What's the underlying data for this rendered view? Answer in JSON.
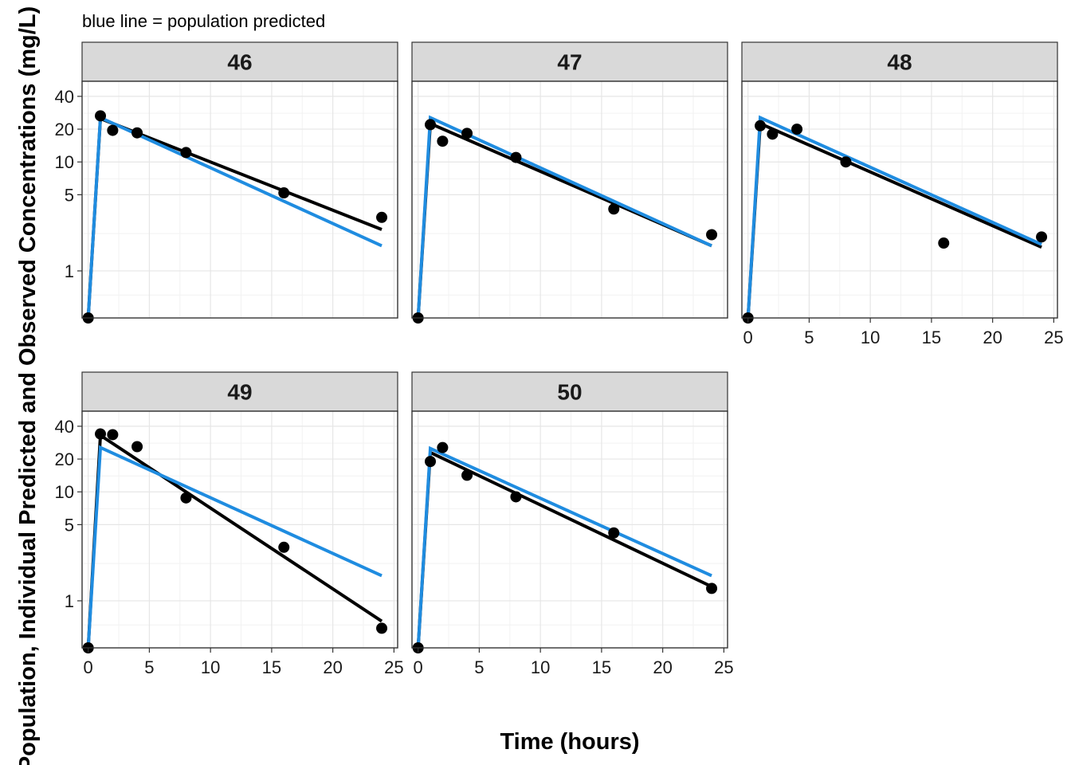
{
  "chart_data": {
    "type": "line",
    "subtitle": "blue line = population predicted",
    "xlabel": "Time (hours)",
    "ylabel": "Population, Individual Predicted and Observed Concentrations (mg/L)",
    "x_scale": "linear",
    "y_scale": "log",
    "xlim": [
      -0.5,
      25.3
    ],
    "ylim": [
      0.37,
      55
    ],
    "x_ticks": [
      0,
      5,
      10,
      15,
      20,
      25
    ],
    "y_ticks": [
      1,
      5,
      10,
      20,
      40
    ],
    "x_tick_labels": [
      "0",
      "5",
      "10",
      "15",
      "20",
      "25"
    ],
    "y_tick_labels": [
      "1",
      "5",
      "10",
      "20",
      "40"
    ],
    "grid": true,
    "colors": {
      "individual": "#000000",
      "population": "#1f8ce0",
      "observed": "#000000",
      "strip_fill": "#d9d9d9"
    },
    "panels": [
      {
        "id": "46",
        "observed": [
          [
            0,
            0.37
          ],
          [
            1,
            26.5
          ],
          [
            2,
            19.5
          ],
          [
            4,
            18.5
          ],
          [
            8,
            12.2
          ],
          [
            16,
            5.2
          ],
          [
            24,
            3.1
          ]
        ],
        "individual_pred": [
          [
            0,
            0.37
          ],
          [
            1,
            25
          ],
          [
            24,
            2.4
          ]
        ],
        "population_pred": [
          [
            0,
            0.37
          ],
          [
            1,
            25.5
          ],
          [
            24,
            1.7
          ]
        ]
      },
      {
        "id": "47",
        "observed": [
          [
            0,
            0.37
          ],
          [
            1,
            22
          ],
          [
            2,
            15.5
          ],
          [
            4,
            18.3
          ],
          [
            8,
            11
          ],
          [
            16,
            3.7
          ],
          [
            24,
            2.15
          ]
        ],
        "individual_pred": [
          [
            0,
            0.37
          ],
          [
            1,
            22.5
          ],
          [
            24,
            1.7
          ]
        ],
        "population_pred": [
          [
            0,
            0.37
          ],
          [
            1,
            25.5
          ],
          [
            24,
            1.7
          ]
        ]
      },
      {
        "id": "48",
        "observed": [
          [
            0,
            0.37
          ],
          [
            1,
            21.5
          ],
          [
            2,
            18
          ],
          [
            4,
            20
          ],
          [
            8,
            10
          ],
          [
            16,
            1.8
          ],
          [
            24,
            2.05
          ]
        ],
        "individual_pred": [
          [
            0,
            0.37
          ],
          [
            1,
            22.5
          ],
          [
            24,
            1.65
          ]
        ],
        "population_pred": [
          [
            0,
            0.37
          ],
          [
            1,
            25.5
          ],
          [
            24,
            1.75
          ]
        ]
      },
      {
        "id": "49",
        "observed": [
          [
            0,
            0.37
          ],
          [
            1,
            34
          ],
          [
            2,
            33.5
          ],
          [
            4,
            26
          ],
          [
            8,
            8.8
          ],
          [
            16,
            3.1
          ],
          [
            24,
            0.56
          ]
        ],
        "individual_pred": [
          [
            0,
            0.37
          ],
          [
            1,
            33
          ],
          [
            24,
            0.65
          ]
        ],
        "population_pred": [
          [
            0,
            0.37
          ],
          [
            1,
            25.5
          ],
          [
            24,
            1.7
          ]
        ]
      },
      {
        "id": "50",
        "observed": [
          [
            0,
            0.37
          ],
          [
            1,
            19
          ],
          [
            2,
            25.5
          ],
          [
            4,
            14.2
          ],
          [
            8,
            9
          ],
          [
            16,
            4.2
          ],
          [
            24,
            1.3
          ]
        ],
        "individual_pred": [
          [
            0,
            0.37
          ],
          [
            1,
            23
          ],
          [
            24,
            1.35
          ]
        ],
        "population_pred": [
          [
            0,
            0.37
          ],
          [
            1,
            25
          ],
          [
            24,
            1.7
          ]
        ]
      }
    ]
  }
}
